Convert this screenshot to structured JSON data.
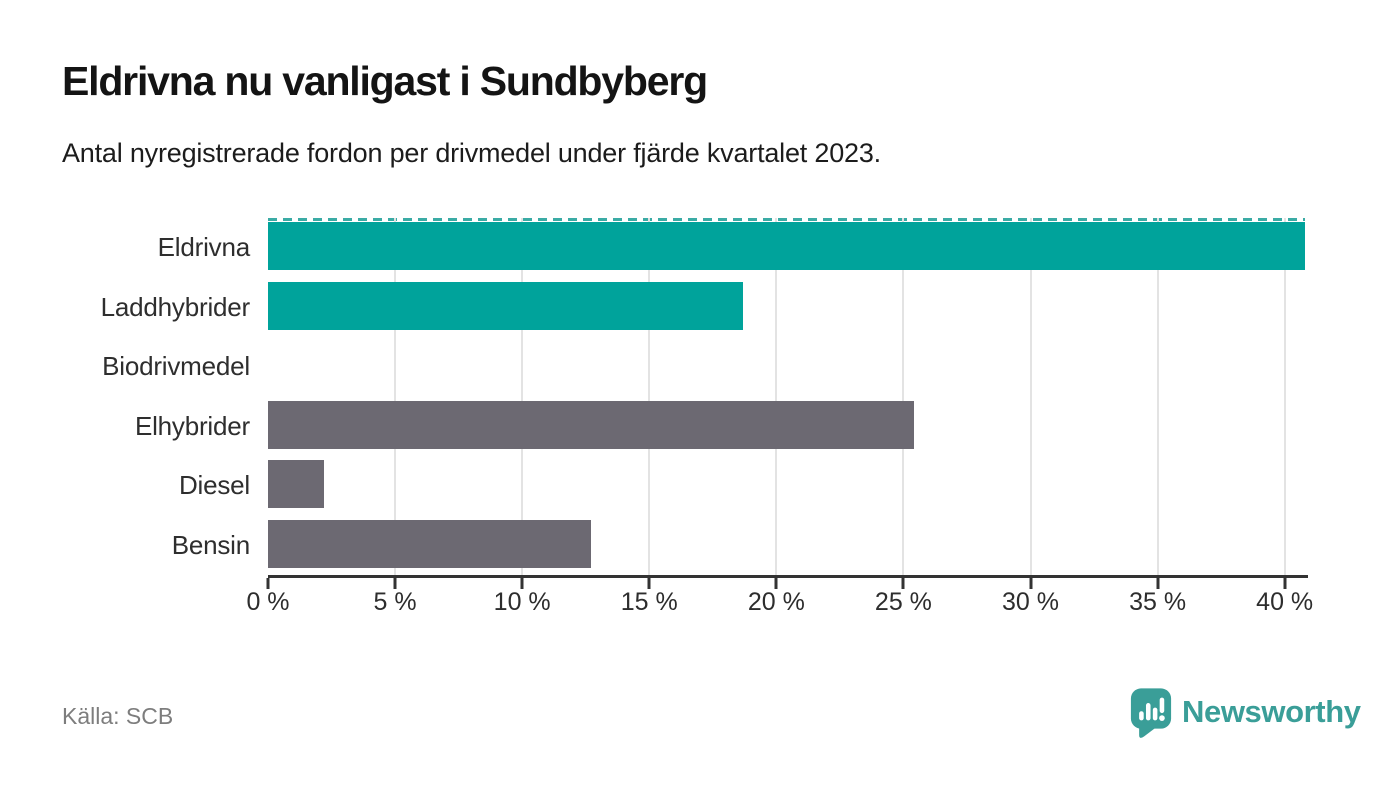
{
  "title": "Eldrivna nu vanligast i Sundbyberg",
  "subtitle": "Antal nyregistrerade fordon per drivmedel under fjärde kvartalet 2023.",
  "source": "Källa: SCB",
  "brand": {
    "name": "Newsworthy",
    "icon": "newsworthy-speech-bubble-chart-icon",
    "color": "#3a9e98"
  },
  "colors": {
    "highlight_teal": "#00a39b",
    "neutral_gray": "#6c6972",
    "gridline": "#e3e3e3",
    "axis": "#333333",
    "dashed_top_line": "#3aaba5",
    "background": "#ffffff"
  },
  "chart_data": {
    "type": "bar",
    "orientation": "horizontal",
    "title": "Eldrivna nu vanligast i Sundbyberg",
    "subtitle": "Antal nyregistrerade fordon per drivmedel under fjärde kvartalet 2023.",
    "categories": [
      "Eldrivna",
      "Laddhybrider",
      "Biodrivmedel",
      "Elhybrider",
      "Diesel",
      "Bensin"
    ],
    "values": [
      40.8,
      18.7,
      0,
      25.4,
      2.2,
      12.7
    ],
    "unit": "%",
    "bar_colors": [
      "#00a39b",
      "#00a39b",
      "#6c6972",
      "#6c6972",
      "#6c6972",
      "#6c6972"
    ],
    "x_tick_labels": [
      "0 %",
      "5 %",
      "10 %",
      "15 %",
      "20 %",
      "25 %",
      "30 %",
      "35 %",
      "40 %"
    ],
    "x_tick_values": [
      0,
      5,
      10,
      15,
      20,
      25,
      30,
      35,
      40
    ],
    "xlim": [
      0,
      40.8
    ],
    "grid": true,
    "legend": false,
    "value_labels": false
  }
}
